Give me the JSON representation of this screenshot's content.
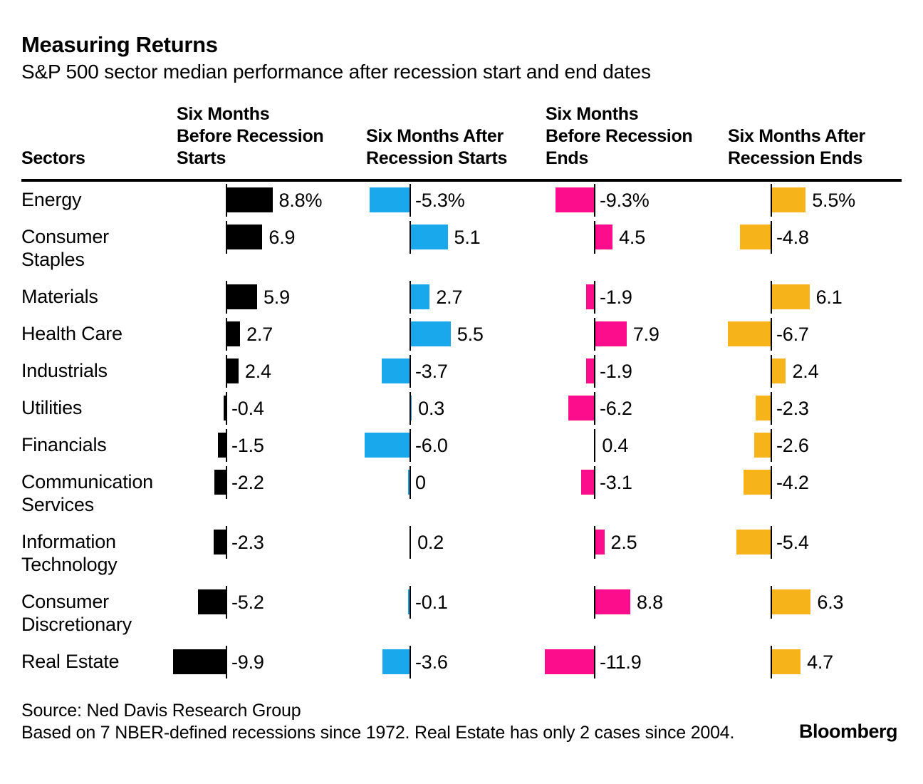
{
  "header": {
    "title": "Measuring Returns",
    "subtitle": "S&P 500 sector median performance after recession start and end dates"
  },
  "table": {
    "sectors_label": "Sectors",
    "column_headers": [
      "Six Months\nBefore Recession\nStarts",
      "Six Months After\nRecession Starts",
      "Six Months\nBefore Recession\nEnds",
      "Six Months After\nRecession Ends"
    ]
  },
  "chart_data": {
    "type": "bar",
    "orientation": "horizontal",
    "title": "Measuring Returns",
    "subtitle": "S&P 500 sector median performance after recession start and end dates",
    "unit": "percent",
    "categories": [
      "Energy",
      "Consumer\nStaples",
      "Materials",
      "Health Care",
      "Industrials",
      "Utilities",
      "Financials",
      "Communication\nServices",
      "Information\nTechnology",
      "Consumer\nDiscretionary",
      "Real Estate"
    ],
    "series": [
      {
        "name": "Six Months Before Recession Starts",
        "color": "#000000",
        "values": [
          8.8,
          6.9,
          5.9,
          2.7,
          2.4,
          -0.4,
          -1.5,
          -2.2,
          -2.3,
          -5.2,
          -9.9
        ],
        "labels": [
          "8.8%",
          "6.9",
          "5.9",
          "2.7",
          "2.4",
          "-0.4",
          "-1.5",
          "-2.2",
          "-2.3",
          "-5.2",
          "-9.9"
        ]
      },
      {
        "name": "Six Months After Recession Starts",
        "color": "#19A8EB",
        "values": [
          -5.3,
          5.1,
          2.7,
          5.5,
          -3.7,
          0.3,
          -6.0,
          0,
          0.2,
          -0.1,
          -3.6
        ],
        "labels": [
          "-5.3%",
          "5.1",
          "2.7",
          "5.5",
          "-3.7",
          "0.3",
          "-6.0",
          "0",
          "0.2",
          "-0.1",
          "-3.6"
        ]
      },
      {
        "name": "Six Months Before Recession Ends",
        "color": "#FB0D8C",
        "values": [
          -9.3,
          4.5,
          -1.9,
          7.9,
          -1.9,
          -6.2,
          0.4,
          -3.1,
          2.5,
          8.8,
          -11.9
        ],
        "labels": [
          "-9.3%",
          "4.5",
          "-1.9",
          "7.9",
          "-1.9",
          "-6.2",
          "0.4",
          "-3.1",
          "2.5",
          "8.8",
          "-11.9"
        ]
      },
      {
        "name": "Six Months After Recession Ends",
        "color": "#F7B41A",
        "values": [
          5.5,
          -4.8,
          6.1,
          -6.7,
          2.4,
          -2.3,
          -2.6,
          -4.2,
          -5.4,
          6.3,
          4.7
        ],
        "labels": [
          "5.5%",
          "-4.8",
          "6.1",
          "-6.7",
          "2.4",
          "-2.3",
          "-2.6",
          "-4.2",
          "-5.4",
          "6.3",
          "4.7"
        ]
      }
    ],
    "tall_rows": [
      1,
      7,
      8,
      9
    ],
    "legend_position": "none",
    "grid": false
  },
  "footer": {
    "source": "Source: Ned Davis Research Group",
    "note": "Based on 7 NBER-defined recessions since 1972. Real Estate has only 2 cases since 2004.",
    "brand": "Bloomberg"
  }
}
